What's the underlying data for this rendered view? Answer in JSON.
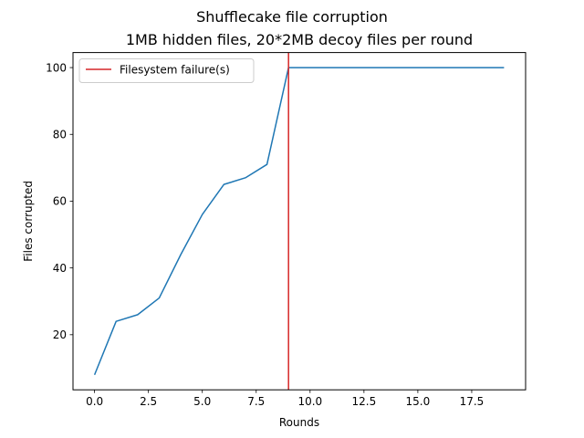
{
  "chart_data": {
    "type": "line",
    "title": "Shufflecake file corruption",
    "subtitle": "1MB hidden files, 20*2MB decoy files per round",
    "xlabel": "Rounds",
    "ylabel": "Files corrupted",
    "xlim": [
      -1.0,
      20.0
    ],
    "ylim": [
      3.5,
      104.5
    ],
    "xticks": [
      0,
      2.5,
      5,
      7.5,
      10,
      12.5,
      15,
      17.5
    ],
    "xtick_labels": [
      "0.0",
      "2.5",
      "5.0",
      "7.5",
      "10.0",
      "12.5",
      "15.0",
      "17.5"
    ],
    "yticks": [
      20,
      40,
      60,
      80,
      100
    ],
    "ytick_labels": [
      "20",
      "40",
      "60",
      "80",
      "100"
    ],
    "grid": false,
    "legend_position": "top-left",
    "series": [
      {
        "color": "#1f77b4",
        "x": [
          0,
          1,
          2,
          3,
          4,
          5,
          6,
          7,
          8,
          9,
          10,
          11,
          12,
          13,
          14,
          15,
          16,
          17,
          18,
          19
        ],
        "y": [
          8,
          24,
          26,
          31,
          44,
          56,
          65,
          67,
          71,
          100,
          100,
          100,
          100,
          100,
          100,
          100,
          100,
          100,
          100,
          100
        ]
      }
    ],
    "vlines": [
      {
        "name": "Filesystem failure(s)",
        "x": 9,
        "color": "#d62728"
      }
    ]
  }
}
